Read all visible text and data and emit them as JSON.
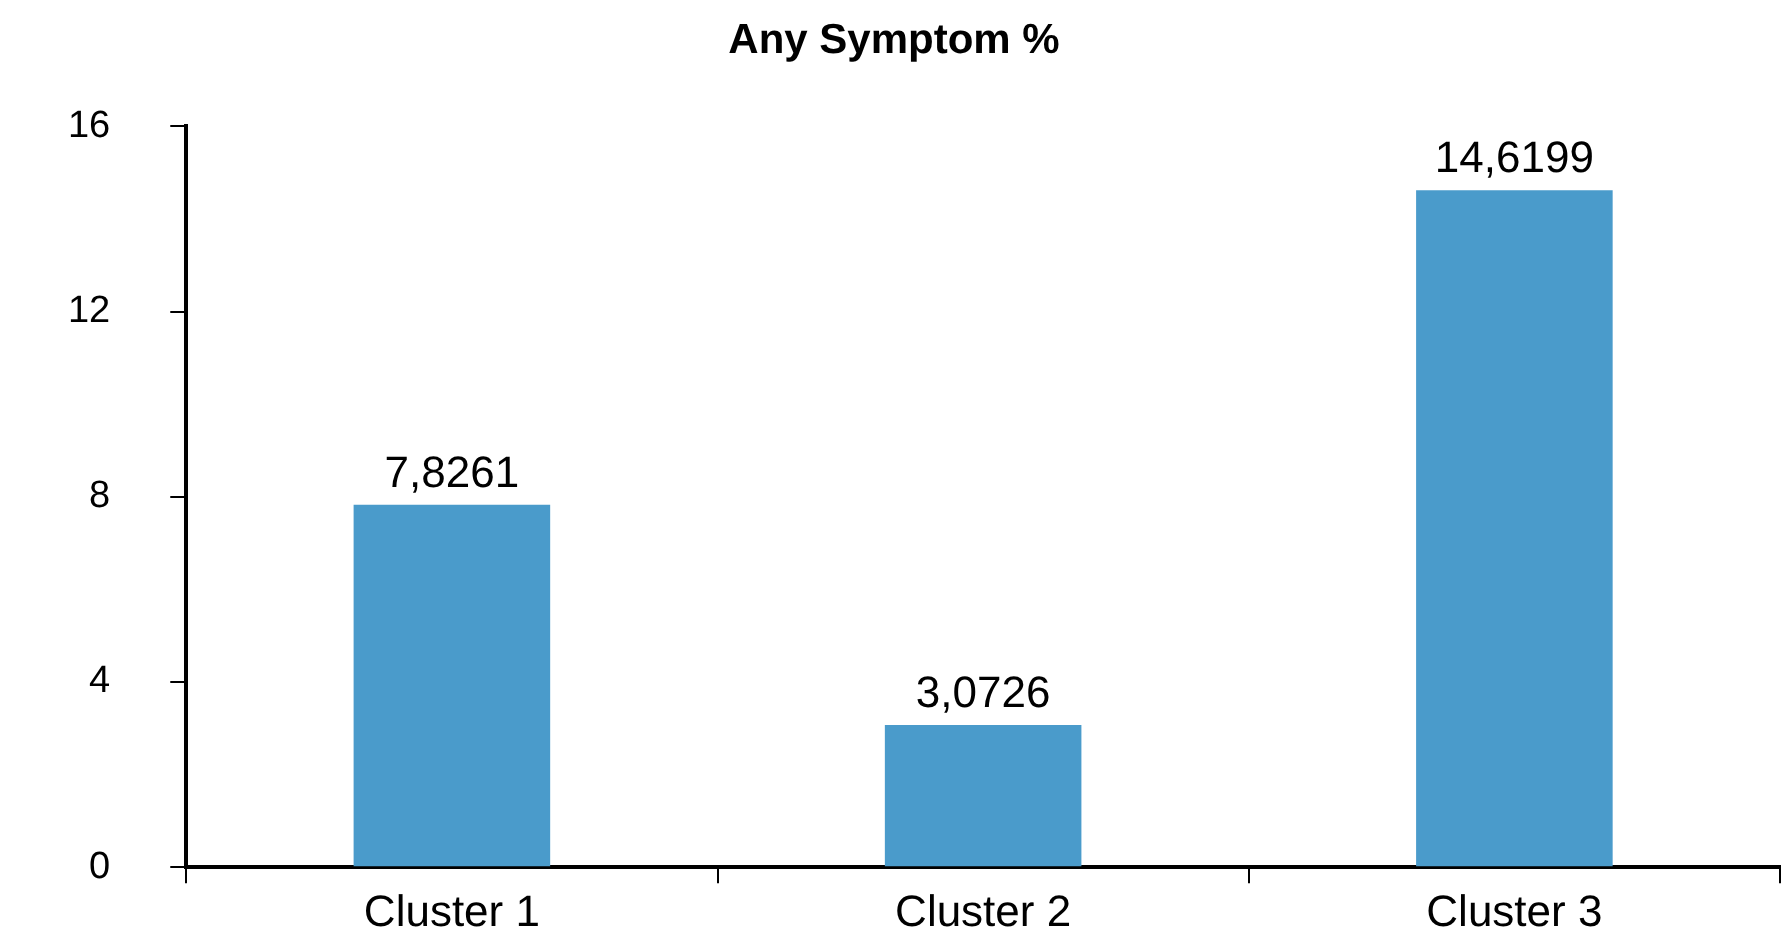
{
  "chart_data": {
    "type": "bar",
    "title": "Any Symptom %",
    "categories": [
      "Cluster 1",
      "Cluster 2",
      "Cluster 3"
    ],
    "values": [
      7.8261,
      3.0726,
      14.6199
    ],
    "value_labels": [
      "7,8261",
      "3,0726",
      "14,6199"
    ],
    "color": "#4a9bcb",
    "ylim": [
      0,
      16
    ],
    "yticks": [
      0,
      4,
      8,
      12,
      16
    ]
  }
}
